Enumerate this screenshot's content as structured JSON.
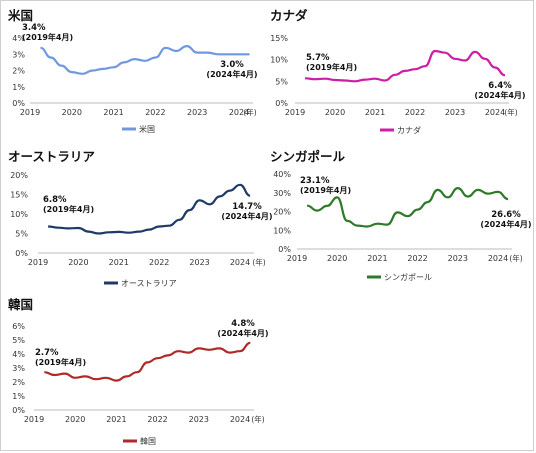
{
  "chart_data": [
    {
      "type": "line",
      "title": "米国",
      "color": "#6f98e0",
      "x": [
        "2019-04",
        "2019-07",
        "2019-10",
        "2020-01",
        "2020-04",
        "2020-07",
        "2020-10",
        "2021-01",
        "2021-04",
        "2021-07",
        "2021-10",
        "2022-01",
        "2022-04",
        "2022-07",
        "2022-10",
        "2023-01",
        "2023-04",
        "2023-07",
        "2023-10",
        "2024-01",
        "2024-04"
      ],
      "series": [
        {
          "name": "米国",
          "values": [
            3.4,
            2.8,
            2.3,
            1.9,
            1.8,
            2.0,
            2.1,
            2.2,
            2.5,
            2.7,
            2.6,
            2.8,
            3.4,
            3.2,
            3.5,
            3.1,
            3.1,
            3.0,
            3.0,
            3.0,
            3.0
          ]
        }
      ],
      "ylim": [
        0,
        4
      ],
      "yticks": [
        "0%",
        "1%",
        "2%",
        "3%",
        "4%"
      ],
      "xticks": [
        "2019",
        "2020",
        "2021",
        "2022",
        "2023",
        "2024"
      ],
      "xunit": "(年)",
      "annotations": [
        {
          "value": "3.4%",
          "date": "(2019年4月)"
        },
        {
          "value": "3.0%",
          "date": "(2024年4月)"
        }
      ]
    },
    {
      "type": "line",
      "title": "カナダ",
      "color": "#cc1fa7",
      "x": [
        "2019-04",
        "2019-07",
        "2019-10",
        "2020-01",
        "2020-04",
        "2020-07",
        "2020-10",
        "2021-01",
        "2021-04",
        "2021-07",
        "2021-10",
        "2022-01",
        "2022-04",
        "2022-07",
        "2022-10",
        "2023-01",
        "2023-04",
        "2023-07",
        "2023-10",
        "2024-01",
        "2024-04"
      ],
      "series": [
        {
          "name": "カナダ",
          "values": [
            5.7,
            5.5,
            5.6,
            5.3,
            5.2,
            5.0,
            5.4,
            5.6,
            5.2,
            6.5,
            7.4,
            7.8,
            8.5,
            12.0,
            11.6,
            10.2,
            9.8,
            11.8,
            10.2,
            8.2,
            6.4
          ]
        }
      ],
      "ylim": [
        0,
        15
      ],
      "yticks": [
        "0%",
        "5%",
        "10%",
        "15%"
      ],
      "xticks": [
        "2019",
        "2020",
        "2021",
        "2022",
        "2023",
        "2024"
      ],
      "xunit": "(年)",
      "annotations": [
        {
          "value": "5.7%",
          "date": "(2019年4月)"
        },
        {
          "value": "6.4%",
          "date": "(2024年4月)"
        }
      ]
    },
    {
      "type": "line",
      "title": "オーストラリア",
      "color": "#1f3a66",
      "x": [
        "2019-04",
        "2019-07",
        "2019-10",
        "2020-01",
        "2020-04",
        "2020-07",
        "2020-10",
        "2021-01",
        "2021-04",
        "2021-07",
        "2021-10",
        "2022-01",
        "2022-04",
        "2022-07",
        "2022-10",
        "2023-01",
        "2023-04",
        "2023-07",
        "2023-10",
        "2024-01",
        "2024-04"
      ],
      "series": [
        {
          "name": "オーストラリア",
          "values": [
            6.8,
            6.5,
            6.3,
            6.4,
            5.5,
            5.0,
            5.3,
            5.4,
            5.2,
            5.5,
            6.0,
            6.8,
            7.0,
            8.5,
            11.0,
            13.5,
            12.5,
            14.5,
            16.0,
            17.5,
            14.7
          ]
        }
      ],
      "ylim": [
        0,
        20
      ],
      "yticks": [
        "0%",
        "5%",
        "10%",
        "15%",
        "20%"
      ],
      "xticks": [
        "2019",
        "2020",
        "2021",
        "2022",
        "2023",
        "2024"
      ],
      "xunit": "(年)",
      "annotations": [
        {
          "value": "6.8%",
          "date": "(2019年4月)"
        },
        {
          "value": "14.7%",
          "date": "(2024年4月)"
        }
      ]
    },
    {
      "type": "line",
      "title": "シンガポール",
      "color": "#2f7a2a",
      "x": [
        "2019-04",
        "2019-07",
        "2019-10",
        "2020-01",
        "2020-04",
        "2020-07",
        "2020-10",
        "2021-01",
        "2021-04",
        "2021-07",
        "2021-10",
        "2022-01",
        "2022-04",
        "2022-07",
        "2022-10",
        "2023-01",
        "2023-04",
        "2023-07",
        "2023-10",
        "2024-01",
        "2024-04"
      ],
      "series": [
        {
          "name": "シンガポール",
          "values": [
            23.1,
            20.5,
            23.0,
            27.5,
            15.0,
            12.5,
            12.0,
            13.5,
            13.0,
            19.5,
            17.5,
            21.0,
            25.0,
            31.5,
            27.5,
            32.5,
            28.0,
            31.5,
            29.5,
            30.5,
            26.6
          ]
        }
      ],
      "ylim": [
        0,
        40
      ],
      "yticks": [
        "0%",
        "10%",
        "20%",
        "30%",
        "40%"
      ],
      "xticks": [
        "2019",
        "2020",
        "2021",
        "2022",
        "2023",
        "2024"
      ],
      "xunit": "(年)",
      "annotations": [
        {
          "value": "23.1%",
          "date": "(2019年4月)"
        },
        {
          "value": "26.6%",
          "date": "(2024年4月)"
        }
      ]
    },
    {
      "type": "line",
      "title": "韓国",
      "color": "#b02a2a",
      "x": [
        "2019-04",
        "2019-07",
        "2019-10",
        "2020-01",
        "2020-04",
        "2020-07",
        "2020-10",
        "2021-01",
        "2021-04",
        "2021-07",
        "2021-10",
        "2022-01",
        "2022-04",
        "2022-07",
        "2022-10",
        "2023-01",
        "2023-04",
        "2023-07",
        "2023-10",
        "2024-01",
        "2024-04"
      ],
      "series": [
        {
          "name": "韓国",
          "values": [
            2.7,
            2.5,
            2.6,
            2.3,
            2.4,
            2.2,
            2.3,
            2.1,
            2.4,
            2.7,
            3.4,
            3.7,
            3.9,
            4.2,
            4.1,
            4.4,
            4.3,
            4.4,
            4.1,
            4.2,
            4.8
          ]
        }
      ],
      "ylim": [
        0,
        6
      ],
      "yticks": [
        "0%",
        "1%",
        "2%",
        "3%",
        "4%",
        "5%",
        "6%"
      ],
      "xticks": [
        "2019",
        "2020",
        "2021",
        "2022",
        "2023",
        "2024"
      ],
      "xunit": "(年)",
      "annotations": [
        {
          "value": "2.7%",
          "date": "(2019年4月)"
        },
        {
          "value": "4.8%",
          "date": "(2024年4月)"
        }
      ]
    }
  ]
}
